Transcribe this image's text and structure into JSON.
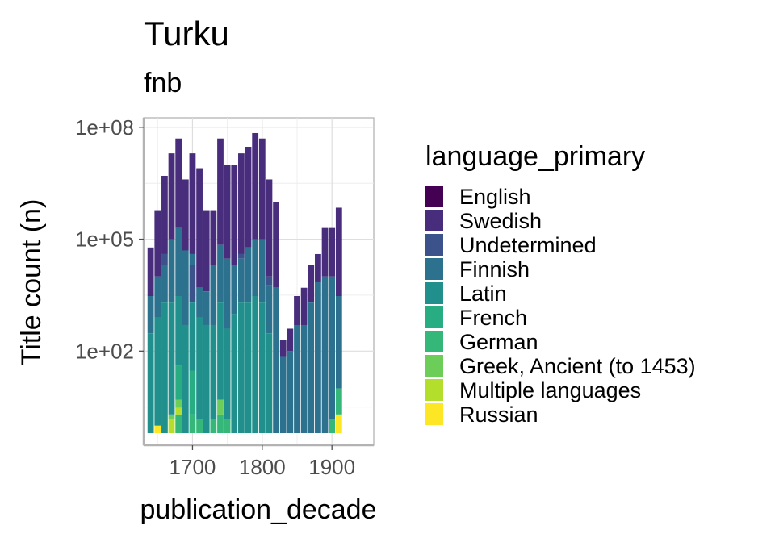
{
  "chart_data": {
    "type": "bar",
    "stacked": true,
    "title": "Turku",
    "subtitle": "fnb",
    "xlabel": "publication_decade",
    "ylabel": "Title count (n)",
    "x_scale": "linear",
    "y_scale": "log10",
    "xlim": [
      1630,
      1960
    ],
    "ylim": [
      0.3,
      180000000
    ],
    "x_ticks": [
      1700,
      1800,
      1900
    ],
    "x_tick_labels": [
      "1700",
      "1800",
      "1900"
    ],
    "y_ticks": [
      100,
      100000,
      100000000
    ],
    "y_tick_labels": [
      "1e+02",
      "1e+05",
      "1e+08"
    ],
    "grid": true,
    "legend_title": "language_primary",
    "legend_position": "right",
    "series": [
      {
        "name": "English",
        "color": "#440154",
        "points": [
          [
            1880,
            40000
          ]
        ]
      },
      {
        "name": "Swedish",
        "color": "#472D7B",
        "points": [
          [
            1640,
            60000
          ],
          [
            1650,
            600000
          ],
          [
            1660,
            5000000
          ],
          [
            1670,
            20000000
          ],
          [
            1680,
            50000000
          ],
          [
            1690,
            4000000
          ],
          [
            1700,
            20000000
          ],
          [
            1710,
            8000000
          ],
          [
            1720,
            600000
          ],
          [
            1730,
            600000
          ],
          [
            1740,
            50000000
          ],
          [
            1750,
            10000000
          ],
          [
            1760,
            10000000
          ],
          [
            1770,
            20000000
          ],
          [
            1780,
            30000000
          ],
          [
            1790,
            70000000
          ],
          [
            1800,
            50000000
          ],
          [
            1810,
            4000000
          ],
          [
            1820,
            1000000
          ],
          [
            1830,
            200
          ],
          [
            1840,
            400
          ],
          [
            1850,
            3000
          ],
          [
            1860,
            5000
          ],
          [
            1870,
            20000
          ],
          [
            1880,
            40000
          ],
          [
            1890,
            200000
          ],
          [
            1900,
            200000
          ],
          [
            1910,
            700000
          ]
        ]
      },
      {
        "name": "Undetermined",
        "color": "#3B528B",
        "points": [
          [
            1660,
            40000
          ],
          [
            1700,
            20000
          ],
          [
            1770,
            40000
          ],
          [
            1810,
            10000
          ]
        ]
      },
      {
        "name": "Finnish",
        "color": "#2C728E",
        "points": [
          [
            1640,
            3000
          ],
          [
            1650,
            10000
          ],
          [
            1660,
            20000
          ],
          [
            1670,
            100000
          ],
          [
            1680,
            200000
          ],
          [
            1690,
            50000
          ],
          [
            1700,
            40000
          ],
          [
            1710,
            5000
          ],
          [
            1720,
            4000
          ],
          [
            1730,
            20000
          ],
          [
            1740,
            70000
          ],
          [
            1750,
            30000
          ],
          [
            1760,
            20000
          ],
          [
            1770,
            30000
          ],
          [
            1780,
            60000
          ],
          [
            1790,
            100000
          ],
          [
            1800,
            100000
          ],
          [
            1810,
            6000
          ],
          [
            1820,
            5000
          ],
          [
            1830,
            70
          ],
          [
            1840,
            100
          ],
          [
            1850,
            500
          ],
          [
            1860,
            500
          ],
          [
            1870,
            2000
          ],
          [
            1880,
            7000
          ],
          [
            1890,
            10000
          ],
          [
            1900,
            10000
          ],
          [
            1910,
            3000
          ]
        ]
      },
      {
        "name": "Latin",
        "color": "#21908C",
        "points": [
          [
            1640,
            300
          ],
          [
            1650,
            800
          ],
          [
            1660,
            2000
          ],
          [
            1670,
            2000
          ],
          [
            1680,
            3000
          ],
          [
            1690,
            500
          ],
          [
            1700,
            2000
          ],
          [
            1710,
            800
          ],
          [
            1720,
            500
          ],
          [
            1730,
            500
          ],
          [
            1740,
            2000
          ],
          [
            1750,
            400
          ],
          [
            1760,
            1000
          ],
          [
            1770,
            2000
          ],
          [
            1780,
            2000
          ],
          [
            1790,
            3000
          ],
          [
            1800,
            2000
          ],
          [
            1810,
            300
          ]
        ]
      },
      {
        "name": "French",
        "color": "#27AD81",
        "points": [
          [
            1680,
            40
          ],
          [
            1700,
            30
          ]
        ]
      },
      {
        "name": "German",
        "color": "#35B779",
        "points": [
          [
            1680,
            2
          ],
          [
            1700,
            2
          ],
          [
            1710,
            1.5
          ],
          [
            1730,
            1.5
          ],
          [
            1740,
            2
          ],
          [
            1750,
            1.5
          ],
          [
            1900,
            1.5
          ],
          [
            1910,
            10
          ]
        ]
      },
      {
        "name": "Greek, Ancient (to 1453)",
        "color": "#6DCD59",
        "points": [
          [
            1670,
            2
          ],
          [
            1680,
            5
          ],
          [
            1740,
            5
          ]
        ]
      },
      {
        "name": "Multiple languages",
        "color": "#B4DE2C",
        "points": [
          [
            1650,
            1
          ],
          [
            1670,
            1.5
          ],
          [
            1680,
            3
          ]
        ]
      },
      {
        "name": "Russian",
        "color": "#FDE725",
        "points": [
          [
            1650,
            1
          ],
          [
            1910,
            2
          ]
        ]
      }
    ]
  }
}
